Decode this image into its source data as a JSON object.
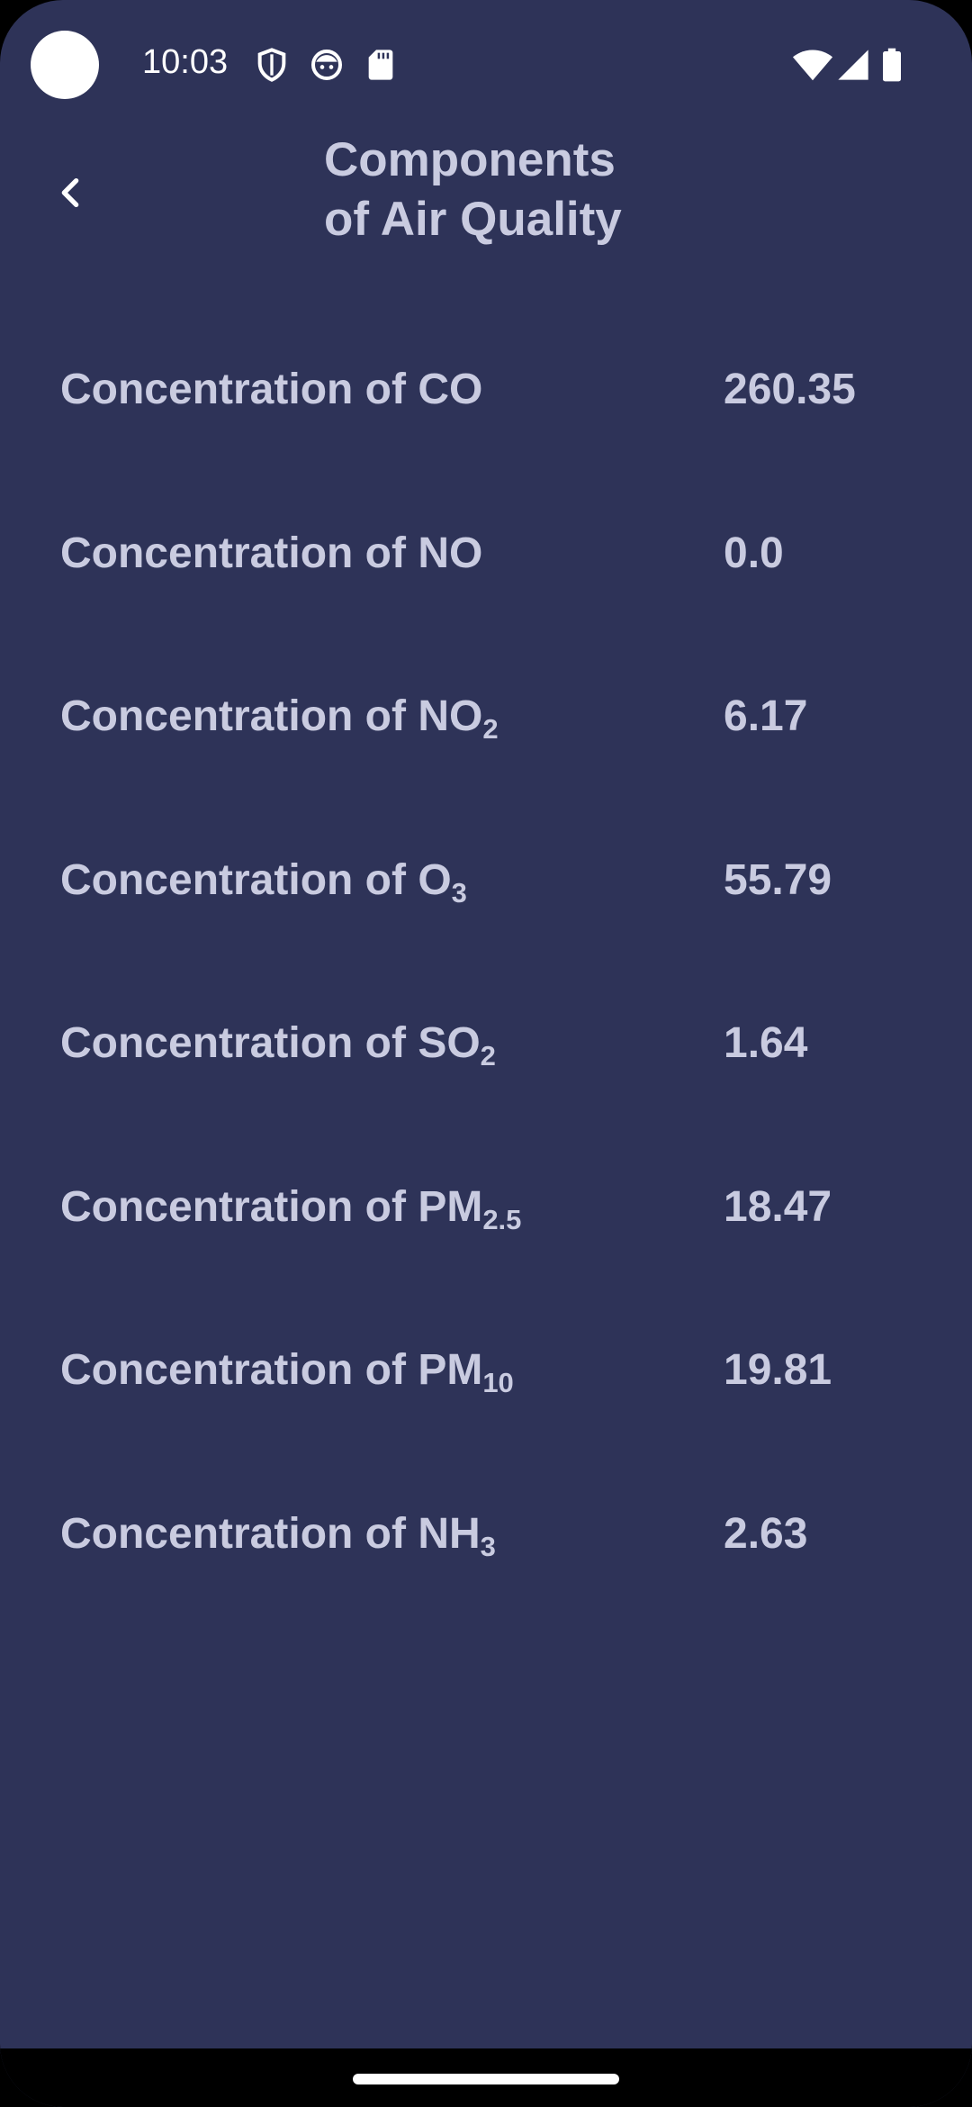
{
  "status_bar": {
    "time": "10:03",
    "icons": [
      "shield-icon",
      "face-icon",
      "sd-card-icon",
      "wifi-icon",
      "signal-icon",
      "battery-icon"
    ]
  },
  "header": {
    "title_line1": "Components",
    "title_line2": "of Air Quality",
    "back_icon": "chevron-left-icon"
  },
  "rows": [
    {
      "prefix": "Concentration of ",
      "formula": "CO",
      "sub": "",
      "value": "260.35"
    },
    {
      "prefix": "Concentration of ",
      "formula": "NO",
      "sub": "",
      "value": "0.0"
    },
    {
      "prefix": "Concentration of ",
      "formula": "NO",
      "sub": "2",
      "value": "6.17"
    },
    {
      "prefix": "Concentration of ",
      "formula": "O",
      "sub": "3",
      "value": "55.79"
    },
    {
      "prefix": "Concentration of ",
      "formula": "SO",
      "sub": "2",
      "value": "1.64"
    },
    {
      "prefix": "Concentration of ",
      "formula": "PM",
      "sub": "2.5",
      "value": "18.47"
    },
    {
      "prefix": "Concentration of ",
      "formula": "PM",
      "sub": "10",
      "value": "19.81"
    },
    {
      "prefix": "Concentration of ",
      "formula": "NH",
      "sub": "3",
      "value": "2.63"
    }
  ],
  "colors": {
    "background": "#2e3358",
    "text": "#c9cbe0",
    "status_text": "#ffffff"
  }
}
